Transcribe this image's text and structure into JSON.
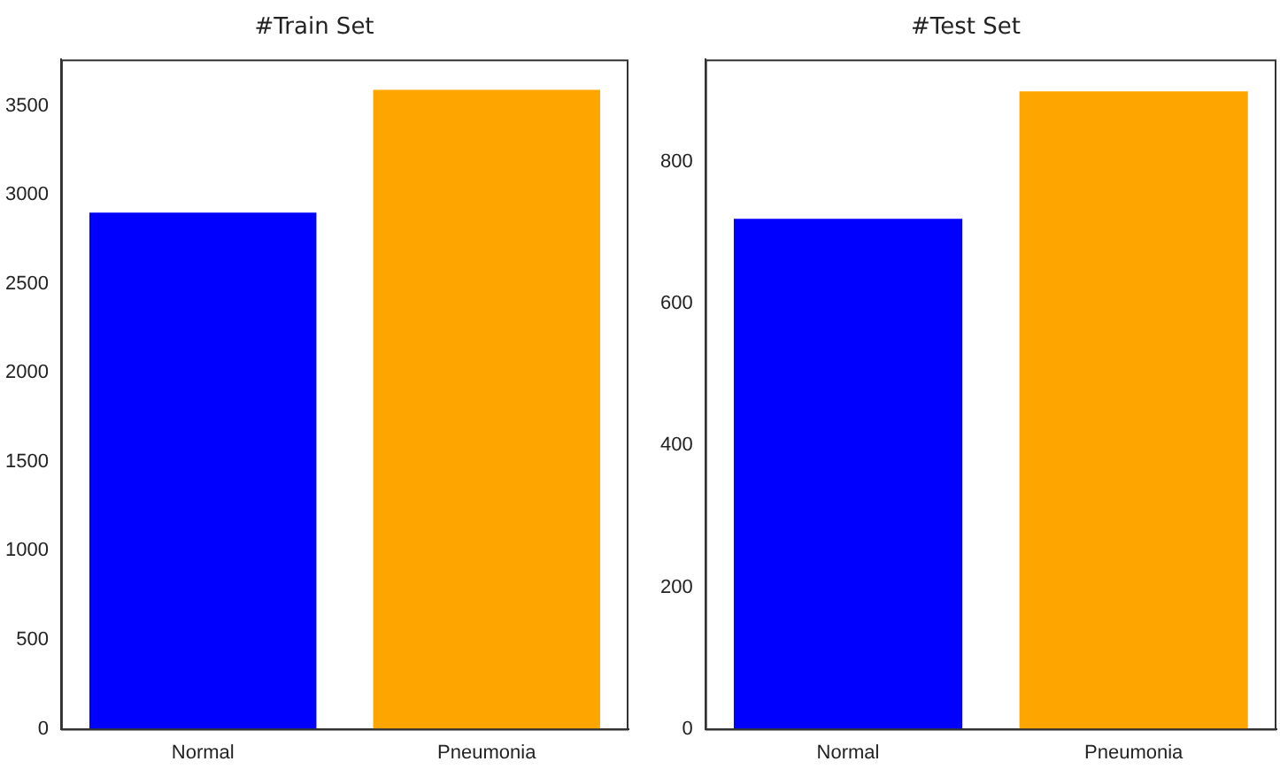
{
  "chart_data": [
    {
      "type": "bar",
      "title": "#Train Set",
      "categories": [
        "Normal",
        "Pneumonia"
      ],
      "values": [
        2900,
        3590
      ],
      "colors": [
        "#0000ff",
        "#ffa500"
      ],
      "ylim": [
        0,
        3760
      ],
      "yticks": [
        0,
        500,
        1000,
        1500,
        2000,
        2500,
        3000,
        3500
      ],
      "grid": false,
      "legend": false
    },
    {
      "type": "bar",
      "title": "#Test Set",
      "categories": [
        "Normal",
        "Pneumonia"
      ],
      "values": [
        720,
        900
      ],
      "colors": [
        "#0000ff",
        "#ffa500"
      ],
      "ylim": [
        0,
        945
      ],
      "yticks": [
        0,
        200,
        400,
        600,
        800
      ],
      "grid": false,
      "legend": false
    }
  ]
}
